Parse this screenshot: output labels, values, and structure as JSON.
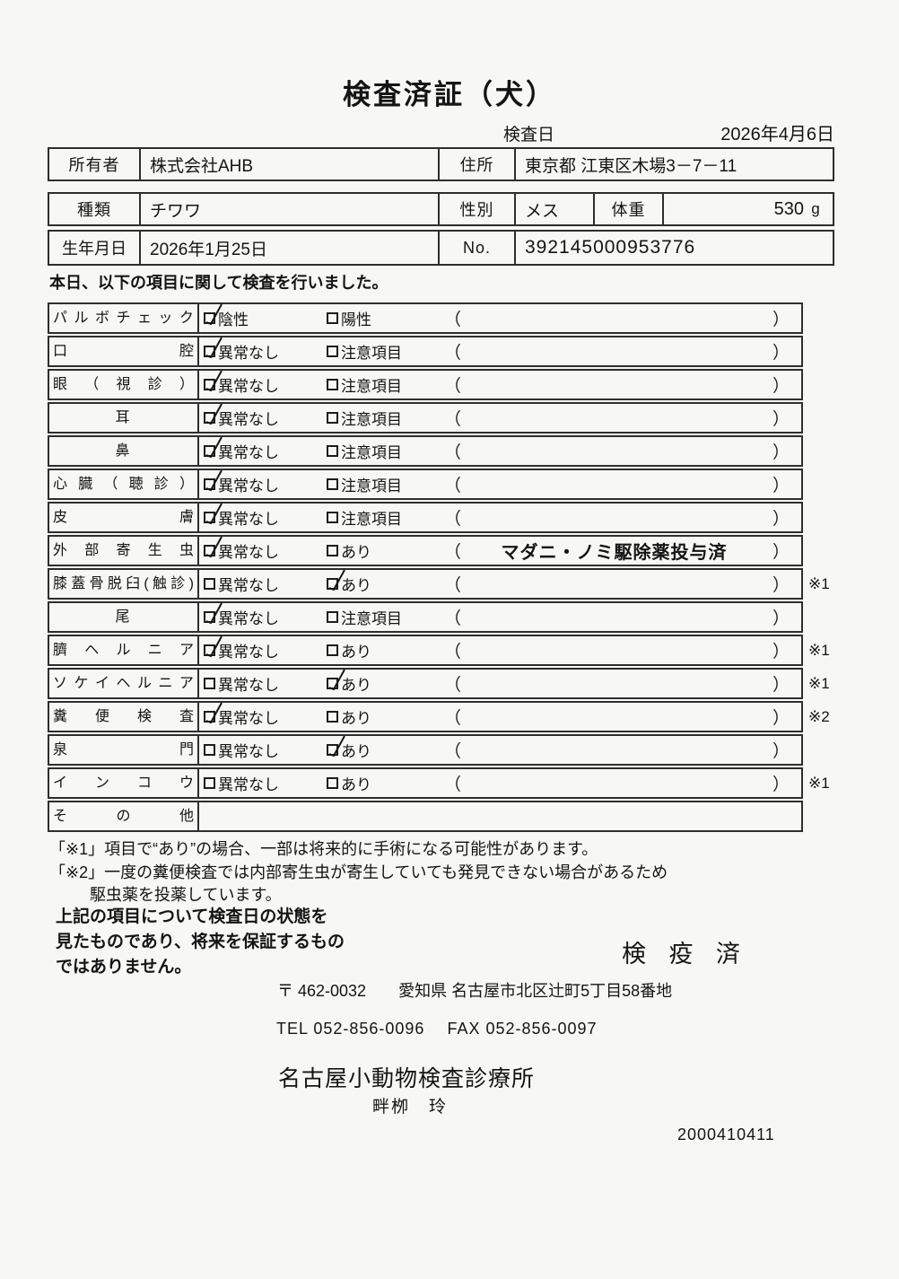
{
  "title": "検査済証（犬）",
  "inspection_date": {
    "label": "検査日",
    "value": "2026年4月6日"
  },
  "owner": {
    "label": "所有者",
    "value": "株式会社AHB",
    "address_label": "住所",
    "address": "東京都 江東区木場3－7－11"
  },
  "pet": {
    "type_label": "種類",
    "type": "チワワ",
    "sex_label": "性別",
    "sex": "メス",
    "weight_label": "体重",
    "weight": "530",
    "weight_unit": "g",
    "birth_label": "生年月日",
    "birth": "2026年1月25日",
    "no_label": "No.",
    "no": "392145000953776"
  },
  "intro": "本日、以下の項目に関して検査を行いました。",
  "table": {
    "rows": [
      {
        "label": "パルボチェック",
        "opt1": "陰性",
        "checked1": true,
        "opt2": "陽性",
        "checked2": false,
        "paren": "",
        "note": ""
      },
      {
        "label": "口腔",
        "opt1": "異常なし",
        "checked1": true,
        "opt2": "注意項目",
        "checked2": false,
        "paren": "",
        "note": ""
      },
      {
        "label": "眼（視診）",
        "opt1": "異常なし",
        "checked1": true,
        "opt2": "注意項目",
        "checked2": false,
        "paren": "",
        "note": ""
      },
      {
        "label": "耳",
        "center": true,
        "opt1": "異常なし",
        "checked1": true,
        "opt2": "注意項目",
        "checked2": false,
        "paren": "",
        "note": ""
      },
      {
        "label": "鼻",
        "center": true,
        "opt1": "異常なし",
        "checked1": true,
        "opt2": "注意項目",
        "checked2": false,
        "paren": "",
        "note": ""
      },
      {
        "label": "心臓（聴診）",
        "opt1": "異常なし",
        "checked1": true,
        "opt2": "注意項目",
        "checked2": false,
        "paren": "",
        "note": ""
      },
      {
        "label": "皮膚",
        "opt1": "異常なし",
        "checked1": true,
        "opt2": "注意項目",
        "checked2": false,
        "paren": "",
        "note": ""
      },
      {
        "label": "外部寄生虫",
        "opt1": "異常なし",
        "checked1": true,
        "opt2": "あり",
        "checked2": false,
        "paren": "マダニ・ノミ駆除薬投与済",
        "note": ""
      },
      {
        "label": "膝蓋骨脱臼(触診)",
        "opt1": "異常なし",
        "checked1": false,
        "opt2": "あり",
        "checked2": true,
        "paren": "",
        "note": "※1"
      },
      {
        "label": "尾",
        "center": true,
        "opt1": "異常なし",
        "checked1": true,
        "opt2": "注意項目",
        "checked2": false,
        "paren": "",
        "note": ""
      },
      {
        "label": "臍ヘルニア",
        "opt1": "異常なし",
        "checked1": true,
        "opt2": "あり",
        "checked2": false,
        "paren": "",
        "note": "※1"
      },
      {
        "label": "ソケイヘルニア",
        "opt1": "異常なし",
        "checked1": false,
        "opt2": "あり",
        "checked2": true,
        "paren": "",
        "note": "※1"
      },
      {
        "label": "糞便検査",
        "opt1": "異常なし",
        "checked1": true,
        "opt2": "あり",
        "checked2": false,
        "paren": "",
        "note": "※2"
      },
      {
        "label": "泉門",
        "opt1": "異常なし",
        "checked1": false,
        "opt2": "あり",
        "checked2": true,
        "paren": "",
        "note": ""
      },
      {
        "label": "インコウ",
        "opt1": "異常なし",
        "checked1": false,
        "opt2": "あり",
        "checked2": false,
        "paren": "",
        "note": "※1"
      },
      {
        "label": "その他",
        "empty": true,
        "opt1": "",
        "checked1": false,
        "opt2": "",
        "checked2": false,
        "paren": "",
        "note": ""
      }
    ]
  },
  "notes": {
    "line1": "「※1」項目で“あり”の場合、一部は将来的に手術になる可能性があります。",
    "line2": "「※2」一度の糞便検査では内部寄生虫が寄生していても発見できない場合があるため",
    "line3": "駆虫薬を投薬しています。"
  },
  "disclaimer": {
    "line1": "上記の項目について検査日の状態を",
    "line2": "見たものであり、将来を保証するもの",
    "line3": "ではありません。"
  },
  "stamp": "検 疫 済",
  "clinic": {
    "address": "〒 462-0032　　愛知県 名古屋市北区辻町5丁目58番地",
    "tel": "TEL 052-856-0096　 FAX 052-856-0097",
    "name": "名古屋小動物検査診療所",
    "veterinarian": "畔栁　玲"
  },
  "document_code": "2000410411"
}
